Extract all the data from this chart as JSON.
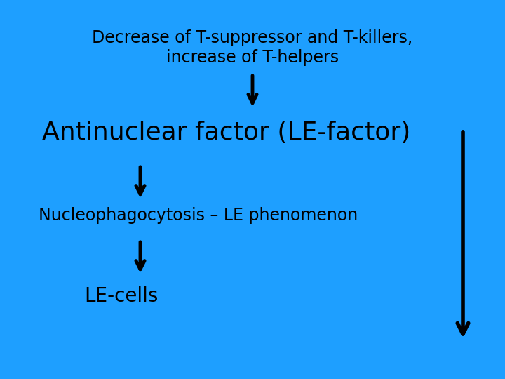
{
  "background_color": "#1E9FFF",
  "text_color": "#000000",
  "title_line1": "Decrease of T-suppressor and T-killers,",
  "title_line2": "increase of T-helpers",
  "antinuclear_text": "Antinuclear factor (LE-factor)",
  "nucleophago_text": "Nucleophagocytosis – LE phenomenon",
  "le_cells_text": "LE-cells",
  "title_fontsize": 17,
  "antinuclear_fontsize": 26,
  "nucleophago_fontsize": 17,
  "le_cells_fontsize": 20,
  "fig_width": 7.2,
  "fig_height": 5.4,
  "dpi": 100
}
